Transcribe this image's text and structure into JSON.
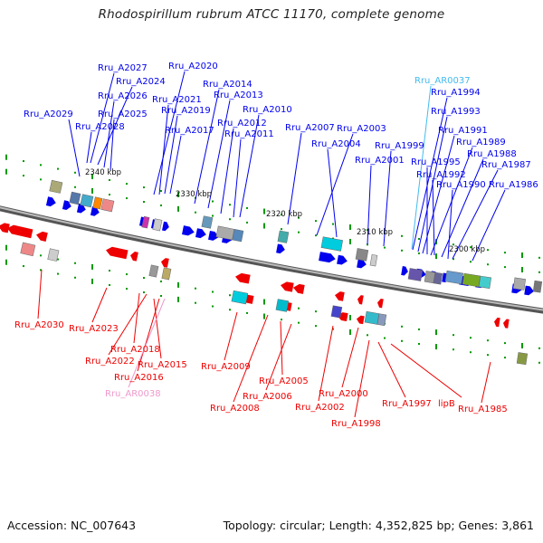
{
  "title": "Rhodospirillum rubrum ATCC 11170, complete genome",
  "footer": {
    "accession": "Accession: NC_007643",
    "summary": "Topology: circular; Length: 4,352,825 bp; Genes: 3,861"
  },
  "colors": {
    "forward_gene": "#0000ee",
    "reverse_gene": "#ee0000",
    "rna_gene": "#44bbee",
    "rna_gene_reverse": "#ee99cc",
    "backbone": "#777777",
    "tick": "#009900"
  },
  "scale_labels": [
    {
      "text": "2340 kbp"
    },
    {
      "text": "2330 kbp"
    },
    {
      "text": "2320 kbp"
    },
    {
      "text": "2310 kbp"
    },
    {
      "text": "2300 kbp"
    }
  ],
  "top_labels": [
    {
      "text": "Rru_A2027",
      "kind": "forward"
    },
    {
      "text": "Rru_A2024",
      "kind": "forward"
    },
    {
      "text": "Rru_A2026",
      "kind": "forward"
    },
    {
      "text": "Rru_A2025",
      "kind": "forward"
    },
    {
      "text": "Rru_A2028",
      "kind": "forward"
    },
    {
      "text": "Rru_A2029",
      "kind": "forward"
    },
    {
      "text": "Rru_A2020",
      "kind": "forward"
    },
    {
      "text": "Rru_A2021",
      "kind": "forward"
    },
    {
      "text": "Rru_A2019",
      "kind": "forward"
    },
    {
      "text": "Rru_A2017",
      "kind": "forward"
    },
    {
      "text": "Rru_A2014",
      "kind": "forward"
    },
    {
      "text": "Rru_A2013",
      "kind": "forward"
    },
    {
      "text": "Rru_A2012",
      "kind": "forward"
    },
    {
      "text": "Rru_A2011",
      "kind": "forward"
    },
    {
      "text": "Rru_A2010",
      "kind": "forward"
    },
    {
      "text": "Rru_A2007",
      "kind": "forward"
    },
    {
      "text": "Rru_A2003",
      "kind": "forward"
    },
    {
      "text": "Rru_A2004",
      "kind": "forward"
    },
    {
      "text": "Rru_A2001",
      "kind": "forward"
    },
    {
      "text": "Rru_A1999",
      "kind": "forward"
    },
    {
      "text": "Rru_AR0037",
      "kind": "rna"
    },
    {
      "text": "Rru_A1994",
      "kind": "forward"
    },
    {
      "text": "Rru_A1993",
      "kind": "forward"
    },
    {
      "text": "Rru_A1991",
      "kind": "forward"
    },
    {
      "text": "Rru_A1989",
      "kind": "forward"
    },
    {
      "text": "Rru_A1988",
      "kind": "forward"
    },
    {
      "text": "Rru_A1995",
      "kind": "forward"
    },
    {
      "text": "Rru_A1987",
      "kind": "forward"
    },
    {
      "text": "Rru_A1992",
      "kind": "forward"
    },
    {
      "text": "Rru_A1990",
      "kind": "forward"
    },
    {
      "text": "Rru_A1986",
      "kind": "forward"
    }
  ],
  "bottom_labels": [
    {
      "text": "Rru_A2030",
      "kind": "reverse"
    },
    {
      "text": "Rru_A2023",
      "kind": "reverse"
    },
    {
      "text": "Rru_A2018",
      "kind": "reverse"
    },
    {
      "text": "Rru_A2022",
      "kind": "reverse"
    },
    {
      "text": "Rru_A2015",
      "kind": "reverse"
    },
    {
      "text": "Rru_A2016",
      "kind": "reverse"
    },
    {
      "text": "Rru_AR0038",
      "kind": "rna_reverse"
    },
    {
      "text": "Rru_A2009",
      "kind": "reverse"
    },
    {
      "text": "Rru_A2008",
      "kind": "reverse"
    },
    {
      "text": "Rru_A2005",
      "kind": "reverse"
    },
    {
      "text": "Rru_A2006",
      "kind": "reverse"
    },
    {
      "text": "Rru_A2000",
      "kind": "reverse"
    },
    {
      "text": "Rru_A2002",
      "kind": "reverse"
    },
    {
      "text": "Rru_A1998",
      "kind": "reverse"
    },
    {
      "text": "Rru_A1997",
      "kind": "reverse"
    },
    {
      "text": "lipB",
      "kind": "reverse"
    },
    {
      "text": "Rru_A1985",
      "kind": "reverse"
    }
  ]
}
